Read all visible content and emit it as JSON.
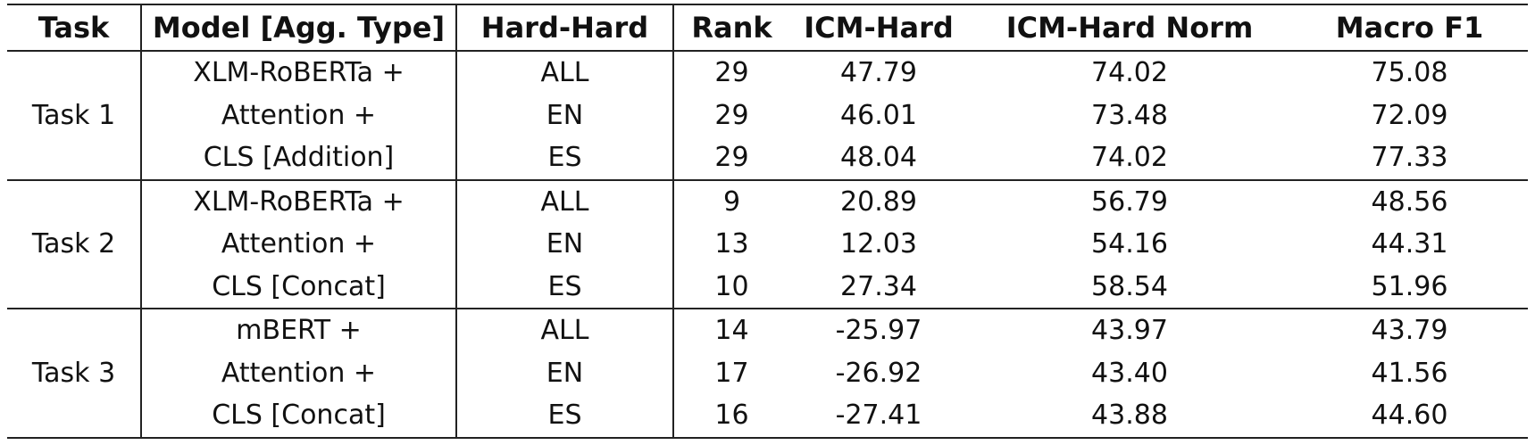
{
  "table": {
    "headers": [
      "Task",
      "Model [Agg. Type]",
      "Hard-Hard",
      "Rank",
      "ICM-Hard",
      "ICM-Hard Norm",
      "Macro F1"
    ],
    "groups": [
      {
        "task": "Task 1",
        "rows": [
          {
            "model": "XLM-RoBERTa +",
            "hard_hard": "ALL",
            "rank": "29",
            "icm_hard": "47.79",
            "icm_hard_norm": "74.02",
            "macro_f1": "75.08"
          },
          {
            "model": "Attention +",
            "hard_hard": "EN",
            "rank": "29",
            "icm_hard": "46.01",
            "icm_hard_norm": "73.48",
            "macro_f1": "72.09"
          },
          {
            "model": "CLS [Addition]",
            "hard_hard": "ES",
            "rank": "29",
            "icm_hard": "48.04",
            "icm_hard_norm": "74.02",
            "macro_f1": "77.33"
          }
        ]
      },
      {
        "task": "Task 2",
        "rows": [
          {
            "model": "XLM-RoBERTa +",
            "hard_hard": "ALL",
            "rank": "9",
            "icm_hard": "20.89",
            "icm_hard_norm": "56.79",
            "macro_f1": "48.56"
          },
          {
            "model": "Attention +",
            "hard_hard": "EN",
            "rank": "13",
            "icm_hard": "12.03",
            "icm_hard_norm": "54.16",
            "macro_f1": "44.31"
          },
          {
            "model": "CLS [Concat]",
            "hard_hard": "ES",
            "rank": "10",
            "icm_hard": "27.34",
            "icm_hard_norm": "58.54",
            "macro_f1": "51.96"
          }
        ]
      },
      {
        "task": "Task 3",
        "rows": [
          {
            "model": "mBERT +",
            "hard_hard": "ALL",
            "rank": "14",
            "icm_hard": "-25.97",
            "icm_hard_norm": "43.97",
            "macro_f1": "43.79"
          },
          {
            "model": "Attention +",
            "hard_hard": "EN",
            "rank": "17",
            "icm_hard": "-26.92",
            "icm_hard_norm": "43.40",
            "macro_f1": "41.56"
          },
          {
            "model": "CLS [Concat]",
            "hard_hard": "ES",
            "rank": "16",
            "icm_hard": "-27.41",
            "icm_hard_norm": "43.88",
            "macro_f1": "44.60"
          }
        ]
      }
    ]
  }
}
